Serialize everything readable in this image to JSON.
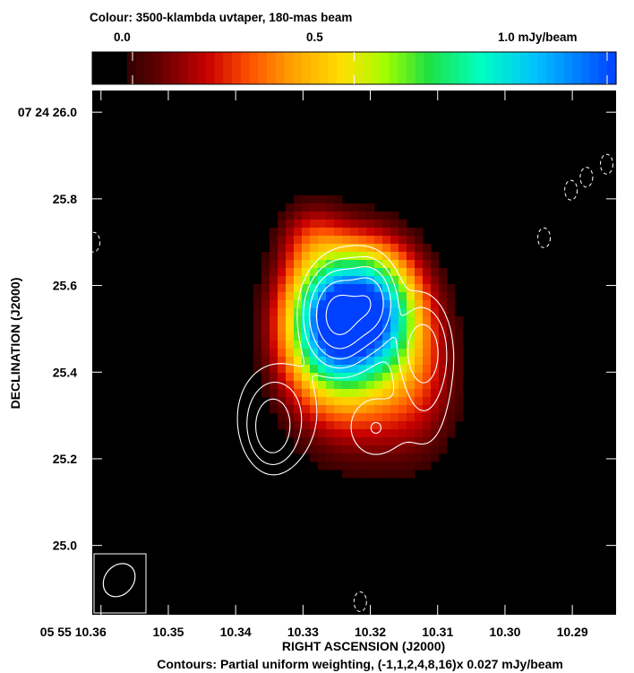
{
  "header": {
    "colorbar_title": "Colour: 3500-klambda uvtaper, 180-mas beam",
    "colorbar_ticks": [
      "0.0",
      "0.5",
      "1.0 mJy/beam"
    ],
    "colorbar_values": [
      0.0,
      0.5,
      1.0
    ]
  },
  "footer": {
    "contour_caption": "Contours: Partial uniform weighting, (-1,1,2,4,8,16)x 0.027 mJy/beam"
  },
  "colors": {
    "background": "#000000",
    "contour": "#ffffff",
    "colormap": [
      "#000000",
      "#5a0000",
      "#c80000",
      "#ff5000",
      "#ffa000",
      "#ffe000",
      "#a0ff00",
      "#20e040",
      "#00ffc0",
      "#00c0ff",
      "#0040ff"
    ]
  },
  "chart_data": {
    "type": "heatmap",
    "title": "",
    "xlabel": "RIGHT ASCENSION (J2000)",
    "ylabel": "DECLINATION (J2000)",
    "x_tick_labels": [
      "05 55 10.36",
      "10.35",
      "10.34",
      "10.33",
      "10.32",
      "10.31",
      "10.30",
      "10.29"
    ],
    "x_tick_values": [
      10.36,
      10.35,
      10.34,
      10.33,
      10.32,
      10.31,
      10.3,
      10.29
    ],
    "y_tick_labels": [
      "07 24 26.0",
      "25.8",
      "25.6",
      "25.4",
      "25.2",
      "25.0"
    ],
    "y_tick_values": [
      26.0,
      25.8,
      25.6,
      25.4,
      25.2,
      25.0
    ],
    "xlim": [
      10.3613,
      10.2835
    ],
    "ylim": [
      24.84,
      26.05
    ],
    "colour_range_mJy_per_beam": [
      0.0,
      1.0
    ],
    "contour_base_mJy_per_beam": 0.027,
    "contour_multipliers": [
      -1,
      1,
      2,
      4,
      8,
      16
    ],
    "emission_peaks": [
      {
        "ra": 10.3254,
        "dec": 25.52,
        "peak_mJy_per_beam": 0.95,
        "sigma_ra_s": 0.0052,
        "sigma_dec_arcsec": 0.11
      },
      {
        "ra": 10.3185,
        "dec": 25.55,
        "peak_mJy_per_beam": 0.55,
        "sigma_ra_s": 0.0045,
        "sigma_dec_arcsec": 0.1
      },
      {
        "ra": 10.3218,
        "dec": 25.36,
        "peak_mJy_per_beam": 0.22,
        "sigma_ra_s": 0.0075,
        "sigma_dec_arcsec": 0.13
      },
      {
        "ra": 10.3126,
        "dec": 25.4,
        "peak_mJy_per_beam": 0.15,
        "sigma_ra_s": 0.0045,
        "sigma_dec_arcsec": 0.14
      },
      {
        "ra": 10.3291,
        "dec": 25.72,
        "peak_mJy_per_beam": 0.14,
        "sigma_ra_s": 0.0035,
        "sigma_dec_arcsec": 0.06
      }
    ],
    "contour_components": [
      {
        "ra": 10.3247,
        "dec": 25.53,
        "peak_multiple": 20,
        "sigma_ra_s": 0.0022,
        "sigma_dec_arcsec": 0.05
      },
      {
        "ra": 10.3202,
        "dec": 25.56,
        "peak_multiple": 12,
        "sigma_ra_s": 0.0018,
        "sigma_dec_arcsec": 0.045
      },
      {
        "ra": 10.3226,
        "dec": 25.55,
        "peak_multiple": 3,
        "sigma_ra_s": 0.0045,
        "sigma_dec_arcsec": 0.09
      },
      {
        "ra": 10.3346,
        "dec": 25.27,
        "peak_multiple": 5.5,
        "sigma_ra_s": 0.0018,
        "sigma_dec_arcsec": 0.045
      },
      {
        "ra": 10.3338,
        "dec": 25.3,
        "peak_multiple": 2.5,
        "sigma_ra_s": 0.0042,
        "sigma_dec_arcsec": 0.085
      },
      {
        "ra": 10.3122,
        "dec": 25.45,
        "peak_multiple": 4.5,
        "sigma_ra_s": 0.002,
        "sigma_dec_arcsec": 0.055
      },
      {
        "ra": 10.3118,
        "dec": 25.39,
        "peak_multiple": 2.2,
        "sigma_ra_s": 0.0028,
        "sigma_dec_arcsec": 0.12
      },
      {
        "ra": 10.3193,
        "dec": 25.27,
        "peak_multiple": 2.0,
        "sigma_ra_s": 0.0028,
        "sigma_dec_arcsec": 0.05
      }
    ],
    "negative_contours": [
      {
        "ra": 10.3215,
        "dec": 24.87
      },
      {
        "ra": 10.2942,
        "dec": 25.71
      },
      {
        "ra": 10.2879,
        "dec": 25.85
      },
      {
        "ra": 10.2849,
        "dec": 25.88
      },
      {
        "ra": 10.2902,
        "dec": 25.82
      },
      {
        "ra": 10.3611,
        "dec": 25.7
      }
    ],
    "beam": {
      "ra": 10.3573,
      "dec": 24.92,
      "major_arcsec": 0.08,
      "minor_arcsec": 0.06,
      "angle_deg": 40
    },
    "grid": false,
    "legend": "colorbar top"
  }
}
